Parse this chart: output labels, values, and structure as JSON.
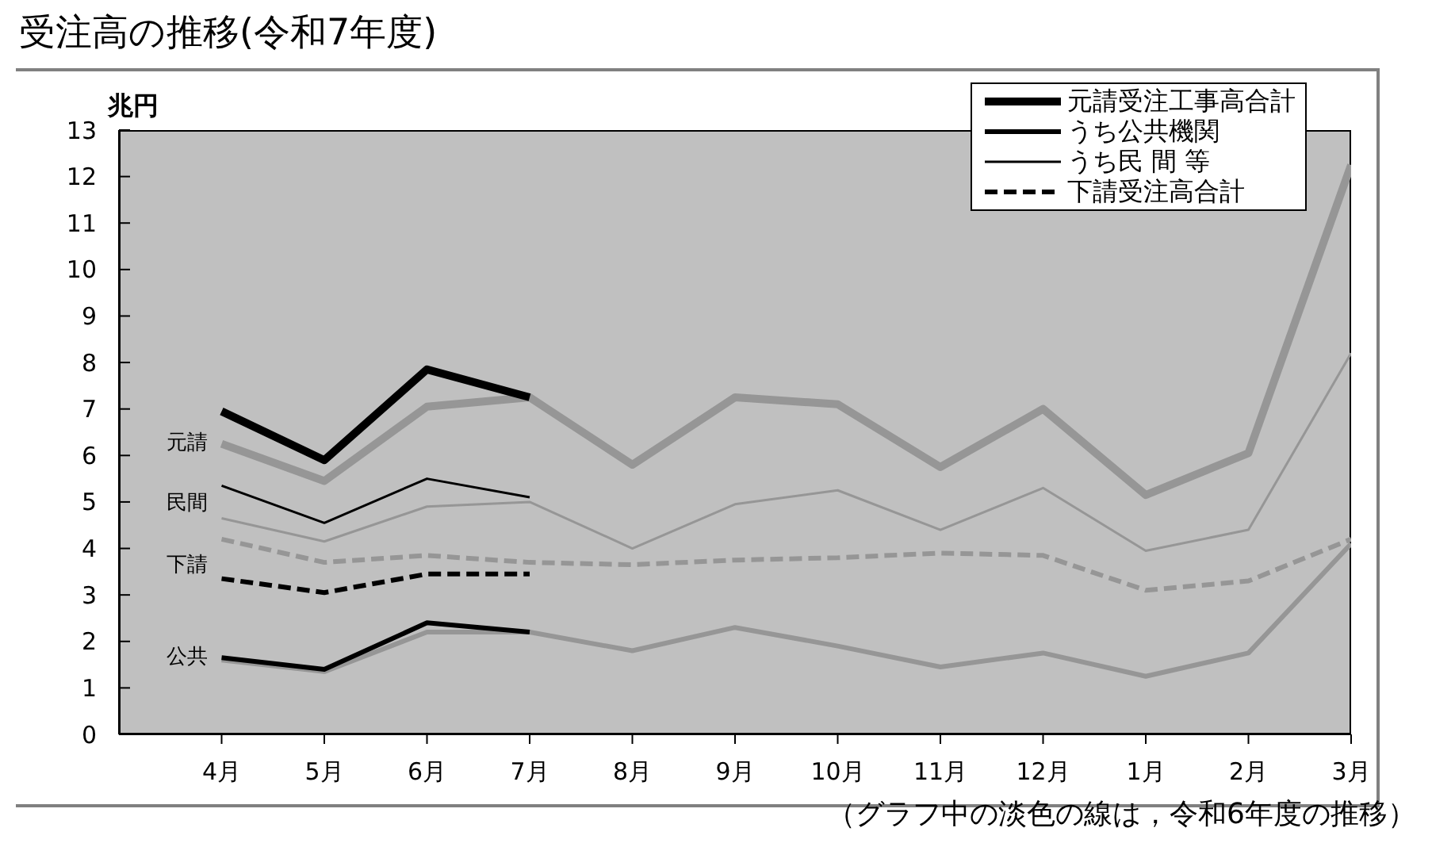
{
  "chart_data": {
    "type": "line",
    "title": "受注高の推移(令和7年度)",
    "ylabel": "兆円",
    "categories": [
      "4月",
      "5月",
      "6月",
      "7月",
      "8月",
      "9月",
      "10月",
      "11月",
      "12月",
      "1月",
      "2月",
      "3月"
    ],
    "series": [
      {
        "color": "#969696",
        "values": [
          6.25,
          5.45,
          7.05,
          7.25,
          5.8,
          7.25,
          7.1,
          5.75,
          7.0,
          5.15,
          6.05,
          12.25
        ]
      },
      {
        "color": "#969696",
        "values": [
          1.6,
          1.35,
          2.2,
          2.2,
          1.8,
          2.3,
          1.9,
          1.45,
          1.75,
          1.25,
          1.75,
          4.1
        ]
      },
      {
        "color": "#969696",
        "values": [
          4.65,
          4.15,
          4.9,
          5.0,
          4.0,
          4.95,
          5.25,
          4.4,
          5.3,
          3.95,
          4.4,
          8.2
        ]
      },
      {
        "color": "#969696",
        "line_style": "dashed",
        "values": [
          4.2,
          3.7,
          3.85,
          3.7,
          3.65,
          3.75,
          3.8,
          3.9,
          3.85,
          3.1,
          3.3,
          4.2
        ]
      },
      {
        "name": "元請受注工事高合計",
        "color": "#000000",
        "values": [
          6.95,
          5.9,
          7.85,
          7.25,
          null,
          null,
          null,
          null,
          null,
          null,
          null,
          null
        ]
      },
      {
        "name": "うち公共機関",
        "color": "#000000",
        "values": [
          1.65,
          1.4,
          2.4,
          2.2,
          null,
          null,
          null,
          null,
          null,
          null,
          null,
          null
        ]
      },
      {
        "name": "うち民 間 等",
        "color": "#000000",
        "values": [
          5.35,
          4.55,
          5.5,
          5.1,
          null,
          null,
          null,
          null,
          null,
          null,
          null,
          null
        ]
      },
      {
        "name": "下請受注高合計",
        "color": "#000000",
        "line_style": "dashed",
        "values": [
          3.35,
          3.05,
          3.45,
          3.45,
          null,
          null,
          null,
          null,
          null,
          null,
          null,
          null
        ]
      }
    ],
    "ylim": [
      0,
      13
    ],
    "yticks": [
      0,
      1,
      2,
      3,
      4,
      5,
      6,
      7,
      8,
      9,
      10,
      11,
      12,
      13
    ],
    "legend": "top right",
    "annotations": [
      {
        "text": "元請",
        "x": "4月",
        "y": 6.25
      },
      "民間",
      "下請",
      {
        "text": "公共",
        "x": "4月",
        "y": 1.65
      },
      "（グラフ中の淡色の線は，令和6年度の推移）"
    ]
  }
}
